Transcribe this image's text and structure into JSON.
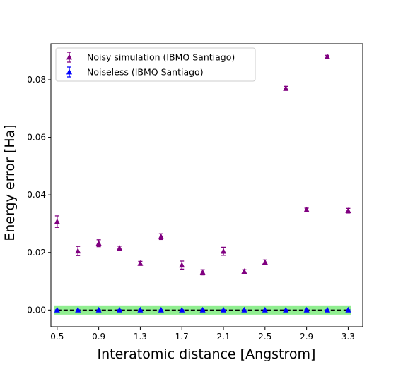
{
  "chart_data": {
    "type": "scatter",
    "xlabel": "Interatomic distance [Angstrom]",
    "ylabel": "Energy error [Ha]",
    "xlim": [
      0.44,
      3.44
    ],
    "ylim": [
      -0.0058,
      0.0925
    ],
    "x_ticks": [
      "0.5",
      "0.9",
      "1.3",
      "1.7",
      "2.1",
      "2.5",
      "2.9",
      "3.3"
    ],
    "y_ticks": [
      "0.00",
      "0.02",
      "0.04",
      "0.06",
      "0.08"
    ],
    "grid": false,
    "legend_position": "upper-left",
    "chemical_accuracy_band": {
      "y_min": -0.0016,
      "y_max": 0.0016,
      "color": "#90ee90"
    },
    "reference_line": {
      "y": 0.0,
      "style": "dashed",
      "color": "#000000"
    },
    "x": [
      0.5,
      0.7,
      0.9,
      1.1,
      1.3,
      1.5,
      1.7,
      1.9,
      2.1,
      2.3,
      2.5,
      2.7,
      2.9,
      3.1,
      3.3
    ],
    "series": [
      {
        "name": "Noisy simulation (IBMQ Santiago)",
        "color": "#800080",
        "marker": "triangle-up",
        "values": [
          0.0307,
          0.0205,
          0.0232,
          0.0215,
          0.0162,
          0.0255,
          0.0156,
          0.0131,
          0.0204,
          0.0134,
          0.0166,
          0.077,
          0.0348,
          0.088,
          0.0345
        ],
        "errors": [
          0.002,
          0.0016,
          0.0012,
          0.0007,
          0.0007,
          0.001,
          0.0014,
          0.0009,
          0.0014,
          0.0006,
          0.0008,
          0.0007,
          0.0006,
          0.0005,
          0.0008
        ]
      },
      {
        "name": "Noiseless (IBMQ Santiago)",
        "color": "#0000ff",
        "marker": "triangle-up",
        "values": [
          0.0,
          0.0,
          0.0,
          0.0,
          0.0,
          0.0,
          0.0,
          0.0,
          0.0,
          0.0,
          0.0,
          0.0,
          0.0,
          0.0,
          0.0
        ],
        "errors": [
          0.0001,
          0.0001,
          0.0001,
          0.0001,
          0.0001,
          0.0001,
          0.0001,
          0.0001,
          0.0001,
          0.0001,
          0.0001,
          0.0001,
          0.0001,
          0.0001,
          0.0001
        ]
      }
    ]
  }
}
